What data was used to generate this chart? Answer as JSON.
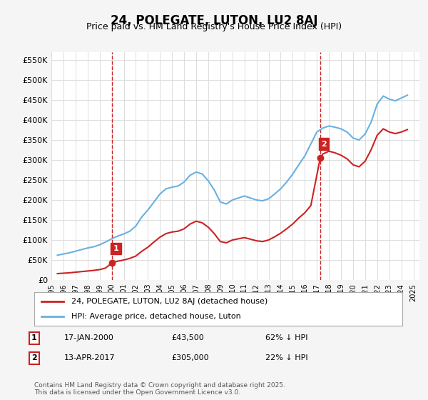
{
  "title": "24, POLEGATE, LUTON, LU2 8AJ",
  "subtitle": "Price paid vs. HM Land Registry's House Price Index (HPI)",
  "ylabel": "",
  "ylim": [
    0,
    570000
  ],
  "yticks": [
    0,
    50000,
    100000,
    150000,
    200000,
    250000,
    300000,
    350000,
    400000,
    450000,
    500000,
    550000
  ],
  "ytick_labels": [
    "£0",
    "£50K",
    "£100K",
    "£150K",
    "£200K",
    "£250K",
    "£300K",
    "£350K",
    "£400K",
    "£450K",
    "£500K",
    "£550K"
  ],
  "bg_color": "#f5f5f5",
  "plot_bg_color": "#ffffff",
  "grid_color": "#dddddd",
  "hpi_color": "#6ab0e0",
  "price_color": "#cc2222",
  "vline_color": "#cc2222",
  "marker1_date": 2000.04,
  "marker2_date": 2017.28,
  "sale1_price": 43500,
  "sale2_price": 305000,
  "legend_entries": [
    "24, POLEGATE, LUTON, LU2 8AJ (detached house)",
    "HPI: Average price, detached house, Luton"
  ],
  "annotation1_label": "1",
  "annotation2_label": "2",
  "table_row1": [
    "1",
    "17-JAN-2000",
    "£43,500",
    "62% ↓ HPI"
  ],
  "table_row2": [
    "2",
    "13-APR-2017",
    "£305,000",
    "22% ↓ HPI"
  ],
  "footer": "Contains HM Land Registry data © Crown copyright and database right 2025.\nThis data is licensed under the Open Government Licence v3.0.",
  "hpi_data": {
    "years": [
      1995.5,
      1996.0,
      1996.5,
      1997.0,
      1997.5,
      1998.0,
      1998.5,
      1999.0,
      1999.5,
      2000.0,
      2000.5,
      2001.0,
      2001.5,
      2002.0,
      2002.5,
      2003.0,
      2003.5,
      2004.0,
      2004.5,
      2005.0,
      2005.5,
      2006.0,
      2006.5,
      2007.0,
      2007.5,
      2008.0,
      2008.5,
      2009.0,
      2009.5,
      2010.0,
      2010.5,
      2011.0,
      2011.5,
      2012.0,
      2012.5,
      2013.0,
      2013.5,
      2014.0,
      2014.5,
      2015.0,
      2015.5,
      2016.0,
      2016.5,
      2017.0,
      2017.5,
      2018.0,
      2018.5,
      2019.0,
      2019.5,
      2020.0,
      2020.5,
      2021.0,
      2021.5,
      2022.0,
      2022.5,
      2023.0,
      2023.5,
      2024.0,
      2024.5
    ],
    "values": [
      62000,
      65000,
      68000,
      72000,
      76000,
      80000,
      83000,
      88000,
      95000,
      103000,
      110000,
      115000,
      122000,
      135000,
      158000,
      175000,
      195000,
      215000,
      228000,
      232000,
      235000,
      245000,
      262000,
      270000,
      265000,
      248000,
      225000,
      195000,
      190000,
      200000,
      205000,
      210000,
      205000,
      200000,
      198000,
      203000,
      215000,
      228000,
      245000,
      265000,
      288000,
      310000,
      340000,
      370000,
      380000,
      385000,
      382000,
      378000,
      370000,
      355000,
      350000,
      365000,
      395000,
      440000,
      460000,
      452000,
      448000,
      455000,
      462000
    ]
  },
  "price_paid_data": {
    "years": [
      2000.04,
      2017.28
    ],
    "values": [
      43500,
      305000
    ]
  },
  "price_line_data": {
    "years": [
      1995.5,
      1996.0,
      1996.5,
      1997.0,
      1997.5,
      1998.0,
      1998.5,
      1999.0,
      1999.5,
      2000.04,
      2000.5,
      2001.0,
      2001.5,
      2002.0,
      2002.5,
      2003.0,
      2003.5,
      2004.0,
      2004.5,
      2005.0,
      2005.5,
      2006.0,
      2006.5,
      2007.0,
      2007.5,
      2008.0,
      2008.5,
      2009.0,
      2009.5,
      2010.0,
      2010.5,
      2011.0,
      2011.5,
      2012.0,
      2012.5,
      2013.0,
      2013.5,
      2014.0,
      2014.5,
      2015.0,
      2015.5,
      2016.0,
      2016.5,
      2017.28,
      2017.5,
      2018.0,
      2018.5,
      2019.0,
      2019.5,
      2020.0,
      2020.5,
      2021.0,
      2021.5,
      2022.0,
      2022.5,
      2023.0,
      2023.5,
      2024.0,
      2024.5
    ],
    "values": [
      16000,
      17000,
      18000,
      19500,
      21000,
      22500,
      24000,
      26000,
      30000,
      43500,
      47000,
      50000,
      54000,
      60000,
      72000,
      82000,
      95000,
      107000,
      116000,
      120000,
      122000,
      128000,
      140000,
      147000,
      143000,
      132000,
      116000,
      96000,
      93000,
      100000,
      103000,
      106000,
      102000,
      98000,
      96000,
      100000,
      108000,
      117000,
      128000,
      140000,
      155000,
      168000,
      186000,
      305000,
      315000,
      322000,
      318000,
      312000,
      303000,
      288000,
      283000,
      297000,
      326000,
      362000,
      378000,
      370000,
      366000,
      370000,
      376000
    ]
  }
}
